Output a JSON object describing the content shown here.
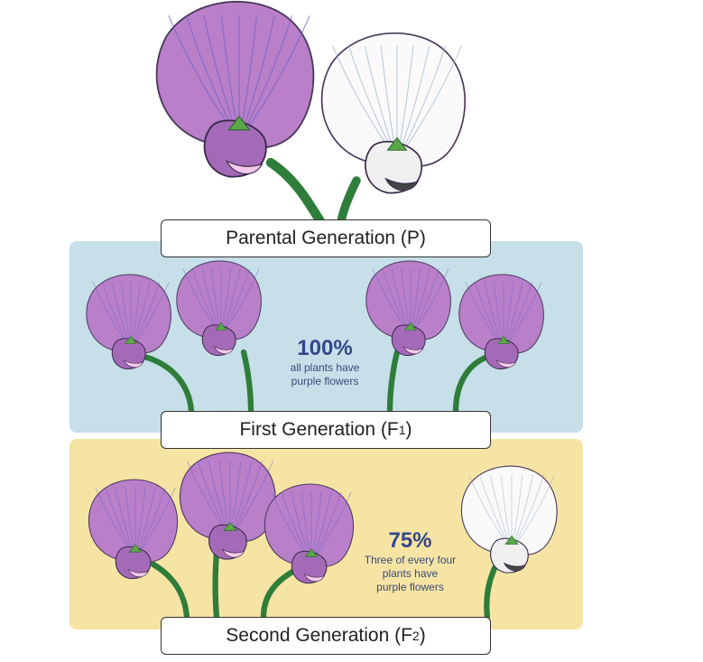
{
  "colors": {
    "purple_petal": "#b97fc9",
    "purple_vein": "#6f63c4",
    "white_petal": "#fafafa",
    "stem": "#2f7d3a",
    "f1_background": "#c6dfe9",
    "f2_background": "#f6e4a5",
    "stat_text": "#34468a"
  },
  "generations": [
    {
      "key": "p",
      "label": "Parental Generation (P)",
      "flowers": [
        "purple",
        "white"
      ]
    },
    {
      "key": "f1",
      "label_main": "First Generation (F",
      "label_sub": "1",
      "label_end": ")",
      "flowers": [
        "purple",
        "purple",
        "purple",
        "purple"
      ]
    },
    {
      "key": "f2",
      "label_main": "Second Generation (F",
      "label_sub": "2",
      "label_end": ")",
      "flowers": [
        "purple",
        "purple",
        "purple",
        "white"
      ]
    }
  ],
  "f1_stat": {
    "percent": "100%",
    "line1": "all plants have",
    "line2": "purple flowers"
  },
  "f2_stat": {
    "percent": "75%",
    "line1": "Three of every four",
    "line2": "plants have",
    "line3": "purple flowers"
  }
}
